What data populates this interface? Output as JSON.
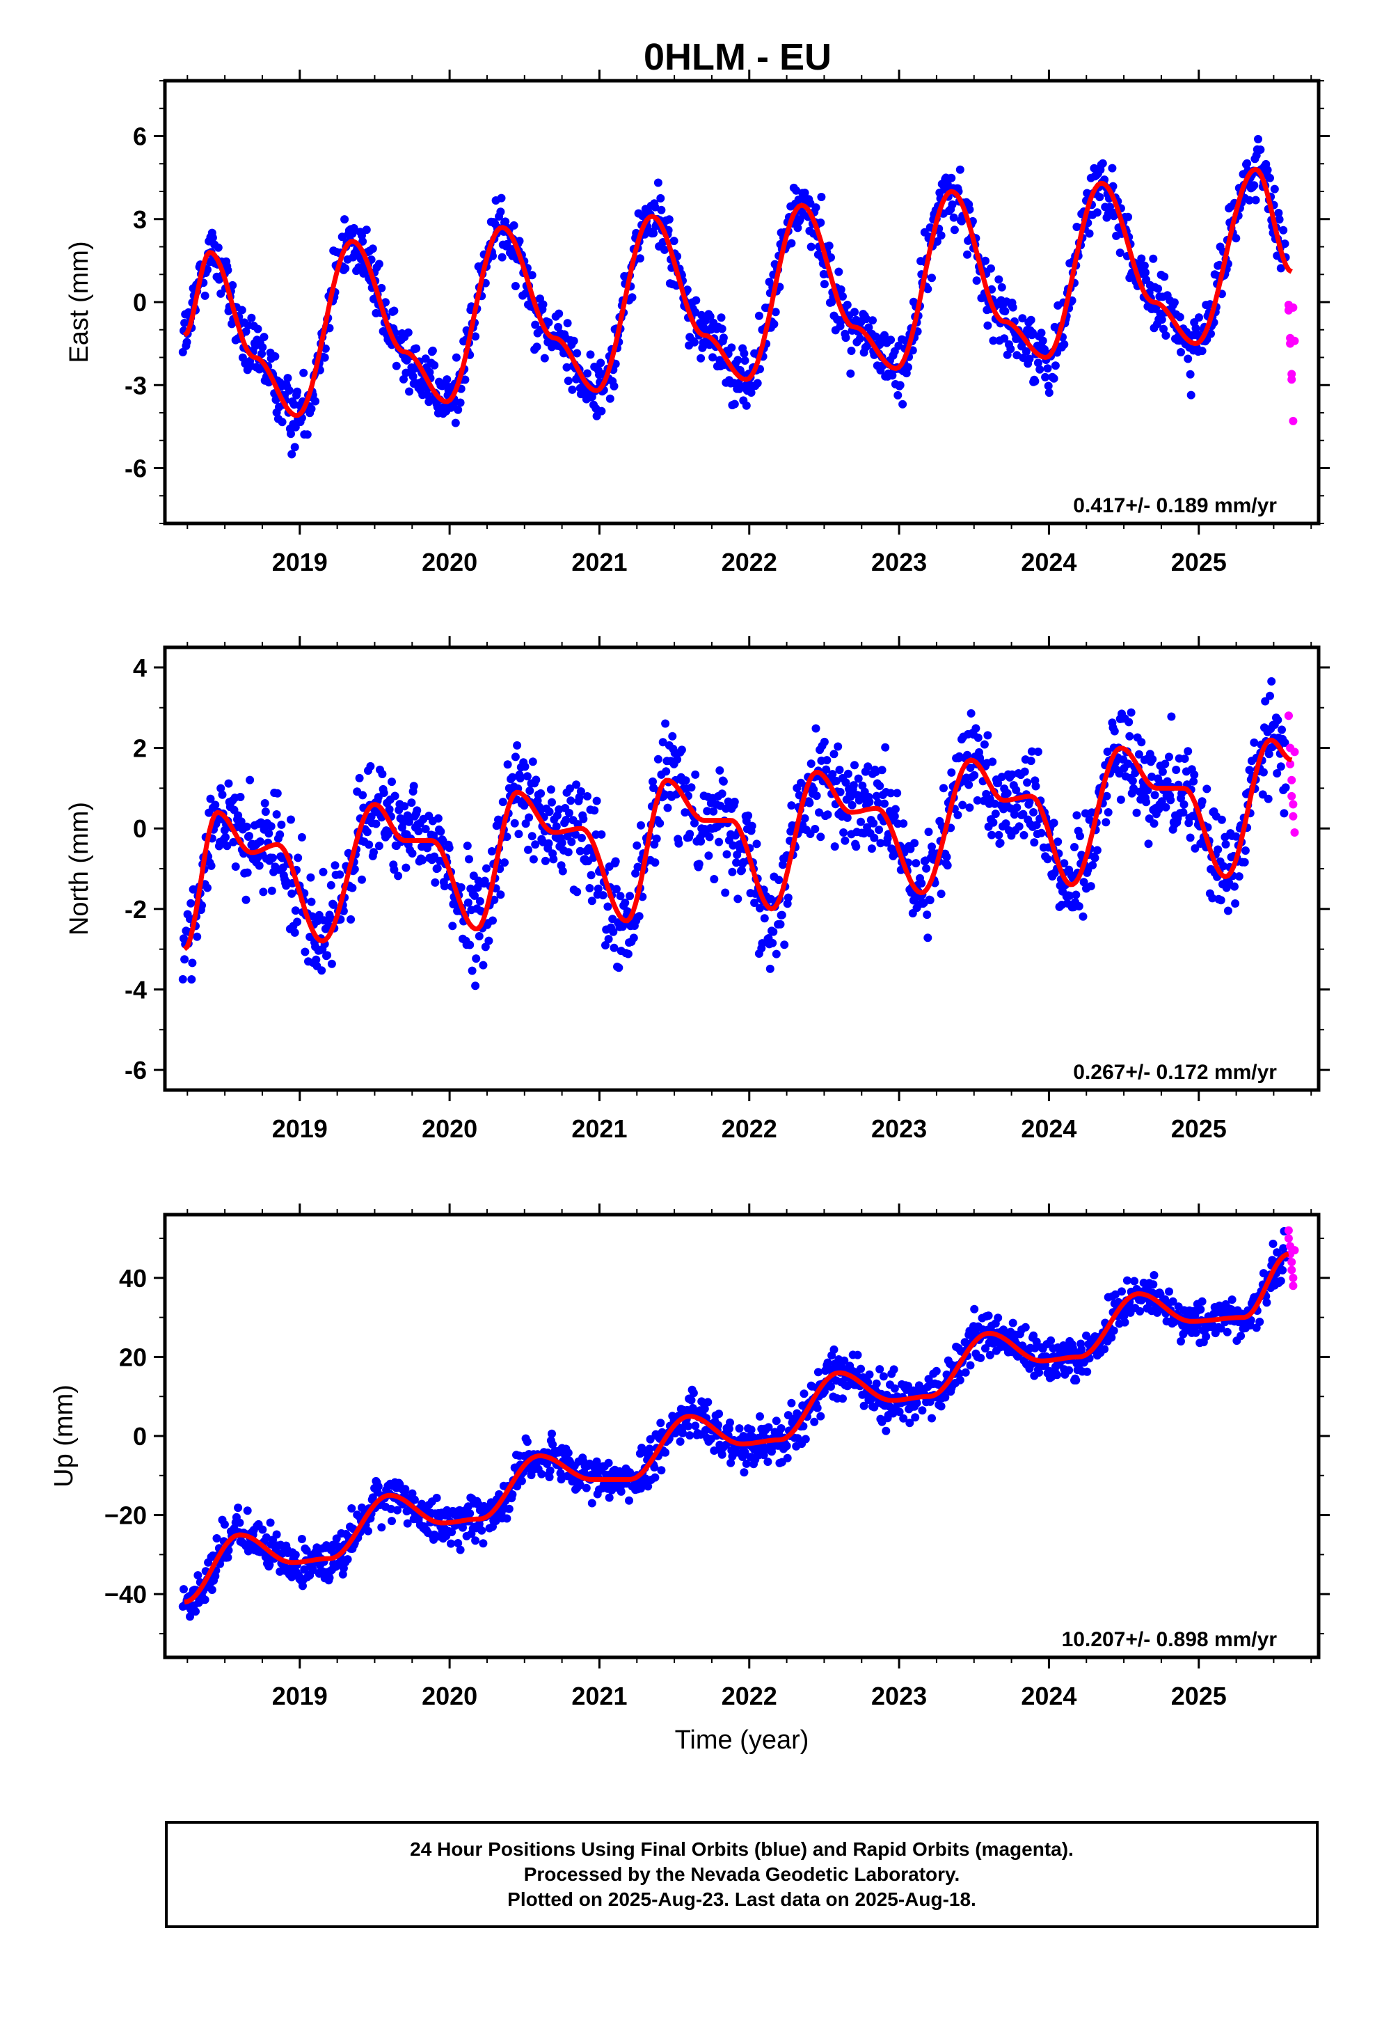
{
  "colors": {
    "final": "#0000ff",
    "rapid": "#ff00ff",
    "model": "#ff0000",
    "frame": "#000000"
  },
  "chart_data": [
    {
      "type": "scatter",
      "title": "0HLM - EU",
      "xlabel": "",
      "ylabel": "East (mm)",
      "xlim": [
        2018.1,
        2025.8
      ],
      "ylim": [
        -8.0,
        8.0
      ],
      "xticks": [
        "2019",
        "2020",
        "2021",
        "2022",
        "2023",
        "2024",
        "2025"
      ],
      "yticks": [
        "6",
        "3",
        "0",
        "-3",
        "-6"
      ],
      "rate": "0.417+/- 0.189 mm/yr",
      "model_line": {
        "name": "",
        "x": [
          2018.23,
          2018.4,
          2018.7,
          2018.98,
          2019.35,
          2019.7,
          2019.98,
          2020.35,
          2020.7,
          2020.98,
          2021.35,
          2021.7,
          2021.98,
          2022.35,
          2022.7,
          2022.98,
          2023.35,
          2023.7,
          2023.98,
          2024.35,
          2024.7,
          2024.98,
          2025.38,
          2025.62
        ],
        "y": [
          -1.2,
          1.8,
          -2.0,
          -4.1,
          2.2,
          -1.8,
          -3.6,
          2.7,
          -1.3,
          -3.2,
          3.1,
          -1.2,
          -2.8,
          3.5,
          -0.9,
          -2.4,
          4.0,
          -0.7,
          -2.0,
          4.3,
          0.0,
          -1.5,
          4.8,
          1.1
        ]
      },
      "series": [
        {
          "name": "Final Orbits",
          "color": "#0000ff",
          "x_range": [
            2018.22,
            2025.58
          ],
          "noise": 1.0
        },
        {
          "name": "Rapid Orbits",
          "color": "#ff00ff",
          "x": [
            2025.6,
            2025.6,
            2025.61,
            2025.61,
            2025.62,
            2025.62,
            2025.63,
            2025.63,
            2025.64
          ],
          "y": [
            -0.1,
            -0.3,
            -1.3,
            -1.5,
            -2.6,
            -2.8,
            -4.3,
            -0.2,
            -1.4
          ]
        }
      ]
    },
    {
      "type": "scatter",
      "title": "",
      "xlabel": "",
      "ylabel": "North (mm)",
      "xlim": [
        2018.1,
        2025.8
      ],
      "ylim": [
        -6.5,
        4.5
      ],
      "xticks": [
        "2019",
        "2020",
        "2021",
        "2022",
        "2023",
        "2024",
        "2025"
      ],
      "yticks": [
        "4",
        "2",
        "0",
        "-2",
        "-4",
        "-6"
      ],
      "rate": "0.267+/- 0.172 mm/yr",
      "model_line": {
        "name": "",
        "x": [
          2018.23,
          2018.45,
          2018.68,
          2018.85,
          2019.15,
          2019.5,
          2019.7,
          2019.88,
          2020.18,
          2020.45,
          2020.7,
          2020.88,
          2021.18,
          2021.45,
          2021.7,
          2021.88,
          2022.15,
          2022.45,
          2022.68,
          2022.85,
          2023.15,
          2023.48,
          2023.7,
          2023.88,
          2024.15,
          2024.48,
          2024.72,
          2024.9,
          2025.18,
          2025.48,
          2025.62
        ],
        "y": [
          -3.0,
          0.4,
          -0.6,
          -0.4,
          -2.8,
          0.6,
          -0.3,
          -0.3,
          -2.5,
          0.9,
          -0.1,
          0.0,
          -2.3,
          1.2,
          0.2,
          0.2,
          -2.0,
          1.4,
          0.4,
          0.5,
          -1.6,
          1.7,
          0.7,
          0.8,
          -1.4,
          2.0,
          1.0,
          1.0,
          -1.2,
          2.2,
          1.7
        ]
      },
      "series": [
        {
          "name": "Final Orbits",
          "color": "#0000ff",
          "x_range": [
            2018.22,
            2025.58
          ],
          "noise": 1.1
        },
        {
          "name": "Rapid Orbits",
          "color": "#ff00ff",
          "x": [
            2025.6,
            2025.6,
            2025.61,
            2025.61,
            2025.62,
            2025.62,
            2025.63,
            2025.63,
            2025.64,
            2025.64
          ],
          "y": [
            2.8,
            2.8,
            2.0,
            1.6,
            1.2,
            0.8,
            0.6,
            0.3,
            -0.1,
            1.9
          ]
        }
      ]
    },
    {
      "type": "scatter",
      "title": "",
      "xlabel": "Time (year)",
      "ylabel": "Up (mm)",
      "xlim": [
        2018.1,
        2025.8
      ],
      "ylim": [
        -56,
        56
      ],
      "xticks": [
        "2019",
        "2020",
        "2021",
        "2022",
        "2023",
        "2024",
        "2025"
      ],
      "yticks": [
        "40",
        "20",
        "0",
        "−20",
        "−40"
      ],
      "rate": "10.207+/- 0.898 mm/yr",
      "model_line": {
        "name": "",
        "x": [
          2018.23,
          2018.6,
          2018.95,
          2019.2,
          2019.6,
          2019.95,
          2020.2,
          2020.6,
          2020.95,
          2021.2,
          2021.6,
          2021.95,
          2022.2,
          2022.6,
          2022.95,
          2023.2,
          2023.6,
          2023.95,
          2024.2,
          2024.6,
          2024.95,
          2025.3,
          2025.6
        ],
        "y": [
          -42,
          -25,
          -32,
          -31,
          -15,
          -22,
          -21,
          -5,
          -11,
          -11,
          5,
          -2,
          -1,
          16,
          9,
          10,
          26,
          19,
          20,
          36,
          29,
          30,
          46
        ]
      },
      "series": [
        {
          "name": "Final Orbits",
          "color": "#0000ff",
          "x_range": [
            2018.22,
            2025.58
          ],
          "noise": 5.0
        },
        {
          "name": "Rapid Orbits",
          "color": "#ff00ff",
          "x": [
            2025.6,
            2025.6,
            2025.61,
            2025.61,
            2025.62,
            2025.62,
            2025.63,
            2025.63,
            2025.64
          ],
          "y": [
            52,
            50,
            48,
            46,
            44,
            42,
            40,
            38,
            47
          ]
        }
      ]
    }
  ],
  "caption": {
    "line1": "24 Hour Positions Using Final Orbits (blue) and Rapid Orbits (magenta).",
    "line2": "Processed by the Nevada Geodetic Laboratory.",
    "line3": "Plotted on 2025-Aug-23. Last data on 2025-Aug-18."
  }
}
